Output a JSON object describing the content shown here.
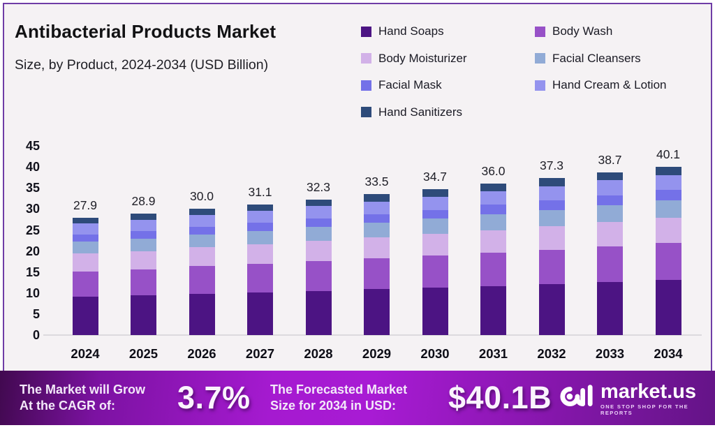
{
  "header": {
    "title": "Antibacterial Products Market",
    "subtitle": "Size, by Product, 2024-2034 (USD Billion)"
  },
  "chart_data": {
    "type": "bar",
    "stacked": true,
    "title": "Antibacterial Products Market Size, by Product, 2024-2034 (USD Billion)",
    "xlabel": "",
    "ylabel": "",
    "ylim": [
      0,
      45
    ],
    "yticks": [
      0,
      5,
      10,
      15,
      20,
      25,
      30,
      35,
      40,
      45
    ],
    "grid": false,
    "legend_position": "top-right",
    "categories": [
      "2024",
      "2025",
      "2026",
      "2027",
      "2028",
      "2029",
      "2030",
      "2031",
      "2032",
      "2033",
      "2034"
    ],
    "series": [
      {
        "name": "Hand Soaps",
        "color": "#4c1483",
        "values": [
          9.1,
          9.4,
          9.8,
          10.1,
          10.5,
          10.9,
          11.3,
          11.7,
          12.1,
          12.6,
          13.1
        ]
      },
      {
        "name": "Body Wash",
        "color": "#9751c7",
        "values": [
          6.1,
          6.3,
          6.6,
          6.8,
          7.1,
          7.3,
          7.6,
          7.9,
          8.2,
          8.5,
          8.8
        ]
      },
      {
        "name": "Body Moisturizer",
        "color": "#d2b1e8",
        "values": [
          4.2,
          4.3,
          4.5,
          4.7,
          4.9,
          5.0,
          5.2,
          5.4,
          5.6,
          5.8,
          6.0
        ]
      },
      {
        "name": "Facial Cleansers",
        "color": "#91abd6",
        "values": [
          2.9,
          3.0,
          3.1,
          3.2,
          3.3,
          3.5,
          3.6,
          3.8,
          3.9,
          4.0,
          4.2
        ]
      },
      {
        "name": "Facial Mask",
        "color": "#7471e8",
        "values": [
          1.7,
          1.8,
          1.8,
          1.9,
          2.0,
          2.1,
          2.1,
          2.2,
          2.3,
          2.4,
          2.4
        ]
      },
      {
        "name": "Hand Cream & Lotion",
        "color": "#9493ee",
        "values": [
          2.5,
          2.6,
          2.7,
          2.8,
          2.9,
          3.0,
          3.1,
          3.2,
          3.3,
          3.5,
          3.6
        ]
      },
      {
        "name": "Hand Sanitizers",
        "color": "#2e4b7a",
        "values": [
          1.4,
          1.5,
          1.5,
          1.6,
          1.6,
          1.7,
          1.8,
          1.8,
          1.9,
          1.9,
          2.0
        ]
      }
    ],
    "totals": [
      27.9,
      28.9,
      30.0,
      31.1,
      32.3,
      33.5,
      34.7,
      36.0,
      37.3,
      38.7,
      40.1
    ],
    "total_labels": [
      "27.9",
      "28.9",
      "30.0",
      "31.1",
      "32.3",
      "33.5",
      "34.7",
      "36.0",
      "37.3",
      "38.7",
      "40.1"
    ]
  },
  "banner": {
    "cagr_label_line1": "The Market will Grow",
    "cagr_label_line2": "At the CAGR of:",
    "cagr_value": "3.7%",
    "forecast_label_line1": "The Forecasted Market",
    "forecast_label_line2": "Size for 2034 in USD:",
    "forecast_value": "$40.1B",
    "brand_name": "market.us",
    "brand_tagline": "ONE STOP SHOP FOR THE REPORTS"
  },
  "colors": {
    "card_background": "#f5f2f4",
    "card_border": "#6f3da6",
    "banner_purple": "#a81bd4",
    "axis_text": "#12121c"
  }
}
